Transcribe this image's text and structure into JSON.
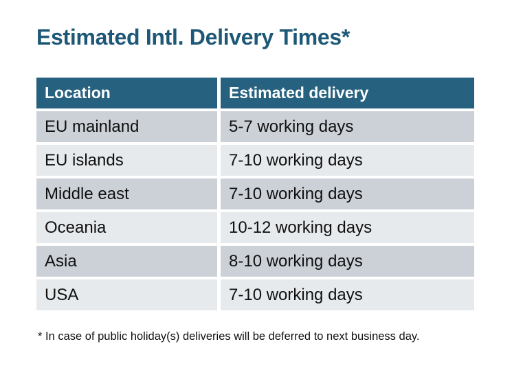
{
  "title": "Estimated Intl. Delivery Times*",
  "footnote": "* In case of public holiday(s) deliveries will be deferred to next business day.",
  "colors": {
    "title-color": "#1e5877",
    "header-bg": "#266280",
    "header-text": "#ffffff",
    "row-dark": "#ccd1d8",
    "row-light": "#e7eaed",
    "body-text": "#101010"
  },
  "table": {
    "headers": [
      "Location",
      "Estimated delivery"
    ],
    "rows": [
      {
        "location": "EU mainland",
        "delivery": "5-7 working days"
      },
      {
        "location": "EU islands",
        "delivery": "7-10 working days"
      },
      {
        "location": "Middle east",
        "delivery": "7-10 working days"
      },
      {
        "location": "Oceania",
        "delivery": "10-12 working days"
      },
      {
        "location": "Asia",
        "delivery": "8-10 working days"
      },
      {
        "location": "USA",
        "delivery": "7-10 working days"
      }
    ]
  },
  "chart_data": {
    "type": "table",
    "title": "Estimated Intl. Delivery Times*",
    "columns": [
      "Location",
      "Estimated delivery"
    ],
    "rows": [
      [
        "EU mainland",
        "5-7 working days"
      ],
      [
        "EU islands",
        "7-10 working days"
      ],
      [
        "Middle east",
        "7-10 working days"
      ],
      [
        "Oceania",
        "10-12 working days"
      ],
      [
        "Asia",
        "8-10 working days"
      ],
      [
        "USA",
        "7-10 working days"
      ]
    ],
    "annotations": [
      "* In case of public holiday(s) deliveries will be deferred to next business day."
    ],
    "layout_hints": {
      "header_style": "teal band, white bold text",
      "row_striping": [
        "dark-grey",
        "light-grey"
      ],
      "cell_gaps": "white gutters between all cells"
    }
  }
}
